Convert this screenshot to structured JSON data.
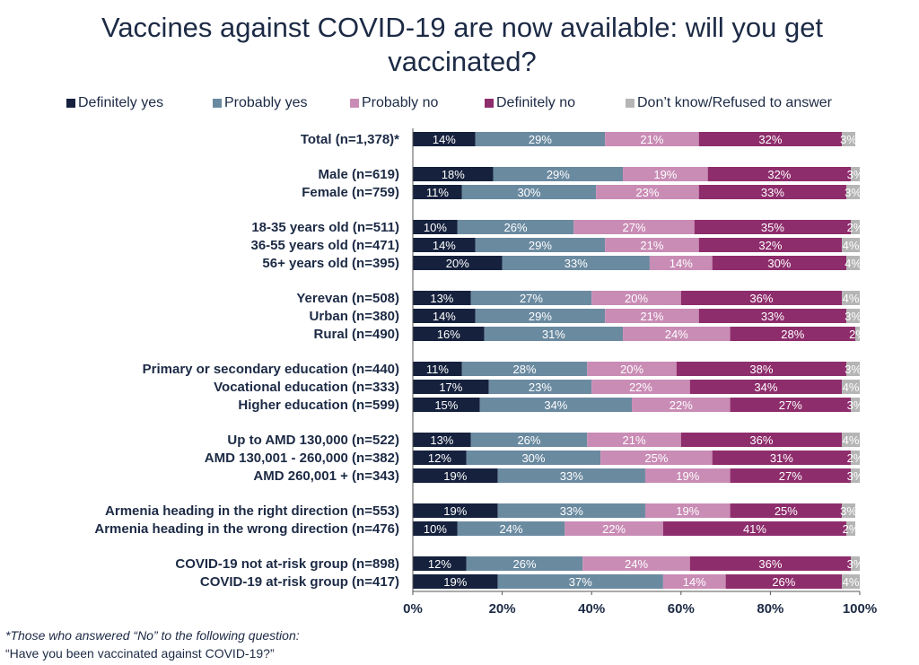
{
  "colors": {
    "definitely_yes": "#15213d",
    "probably_yes": "#6a8aa0",
    "probably_no": "#c98cb5",
    "definitely_no": "#8e2d6c",
    "dont_know": "#b5b5b5",
    "text": "#1c2a45"
  },
  "chart_data": {
    "type": "bar",
    "orientation": "horizontal",
    "stacked": true,
    "title": "Vaccines against COVID-19 are now available: will you get vaccinated?",
    "legend_position": "top",
    "xlim": [
      0,
      100
    ],
    "x_ticks": [
      "0%",
      "20%",
      "40%",
      "60%",
      "80%",
      "100%"
    ],
    "series": [
      {
        "name": "Definitely yes",
        "color_key": "definitely_yes"
      },
      {
        "name": "Probably yes",
        "color_key": "probably_yes"
      },
      {
        "name": "Probably no",
        "color_key": "probably_no"
      },
      {
        "name": "Definitely no",
        "color_key": "definitely_no"
      },
      {
        "name": "Don’t know/Refused to answer",
        "color_key": "dont_know"
      }
    ],
    "categories": [
      {
        "label": "Total (n=1,378)*",
        "values": [
          14,
          29,
          21,
          32,
          3
        ]
      },
      {
        "label": "Male (n=619)",
        "values": [
          18,
          29,
          19,
          32,
          3
        ]
      },
      {
        "label": "Female (n=759)",
        "values": [
          11,
          30,
          23,
          33,
          3
        ]
      },
      {
        "label": "18-35 years old (n=511)",
        "values": [
          10,
          26,
          27,
          35,
          2
        ]
      },
      {
        "label": "36-55 years old (n=471)",
        "values": [
          14,
          29,
          21,
          32,
          4
        ]
      },
      {
        "label": "56+ years old (n=395)",
        "values": [
          20,
          33,
          14,
          30,
          4
        ]
      },
      {
        "label": "Yerevan (n=508)",
        "values": [
          13,
          27,
          20,
          36,
          4
        ]
      },
      {
        "label": "Urban (n=380)",
        "values": [
          14,
          29,
          21,
          33,
          3
        ]
      },
      {
        "label": "Rural (n=490)",
        "values": [
          16,
          31,
          24,
          28,
          2
        ]
      },
      {
        "label": "Primary or secondary education (n=440)",
        "values": [
          11,
          28,
          20,
          38,
          3
        ]
      },
      {
        "label": "Vocational education (n=333)",
        "values": [
          17,
          23,
          22,
          34,
          4
        ]
      },
      {
        "label": "Higher education (n=599)",
        "values": [
          15,
          34,
          22,
          27,
          3
        ]
      },
      {
        "label": "Up to AMD 130,000 (n=522)",
        "values": [
          13,
          26,
          21,
          36,
          4
        ]
      },
      {
        "label": "AMD 130,001 - 260,000 (n=382)",
        "values": [
          12,
          30,
          25,
          31,
          2
        ]
      },
      {
        "label": "AMD 260,001 + (n=343)",
        "values": [
          19,
          33,
          19,
          27,
          3
        ]
      },
      {
        "label": "Armenia heading in the right direction (n=553)",
        "values": [
          19,
          33,
          19,
          25,
          3
        ]
      },
      {
        "label": "Armenia heading in the wrong direction (n=476)",
        "values": [
          10,
          24,
          22,
          41,
          2
        ]
      },
      {
        "label": "COVID-19 not at-risk group (n=898)",
        "values": [
          12,
          26,
          24,
          36,
          3
        ]
      },
      {
        "label": "COVID-19 at-risk group (n=417)",
        "values": [
          19,
          37,
          14,
          26,
          4
        ]
      }
    ]
  },
  "footnote": {
    "line1": "*Those who answered “No” to the following question:",
    "line2": "“Have you been vaccinated against COVID-19?”"
  }
}
